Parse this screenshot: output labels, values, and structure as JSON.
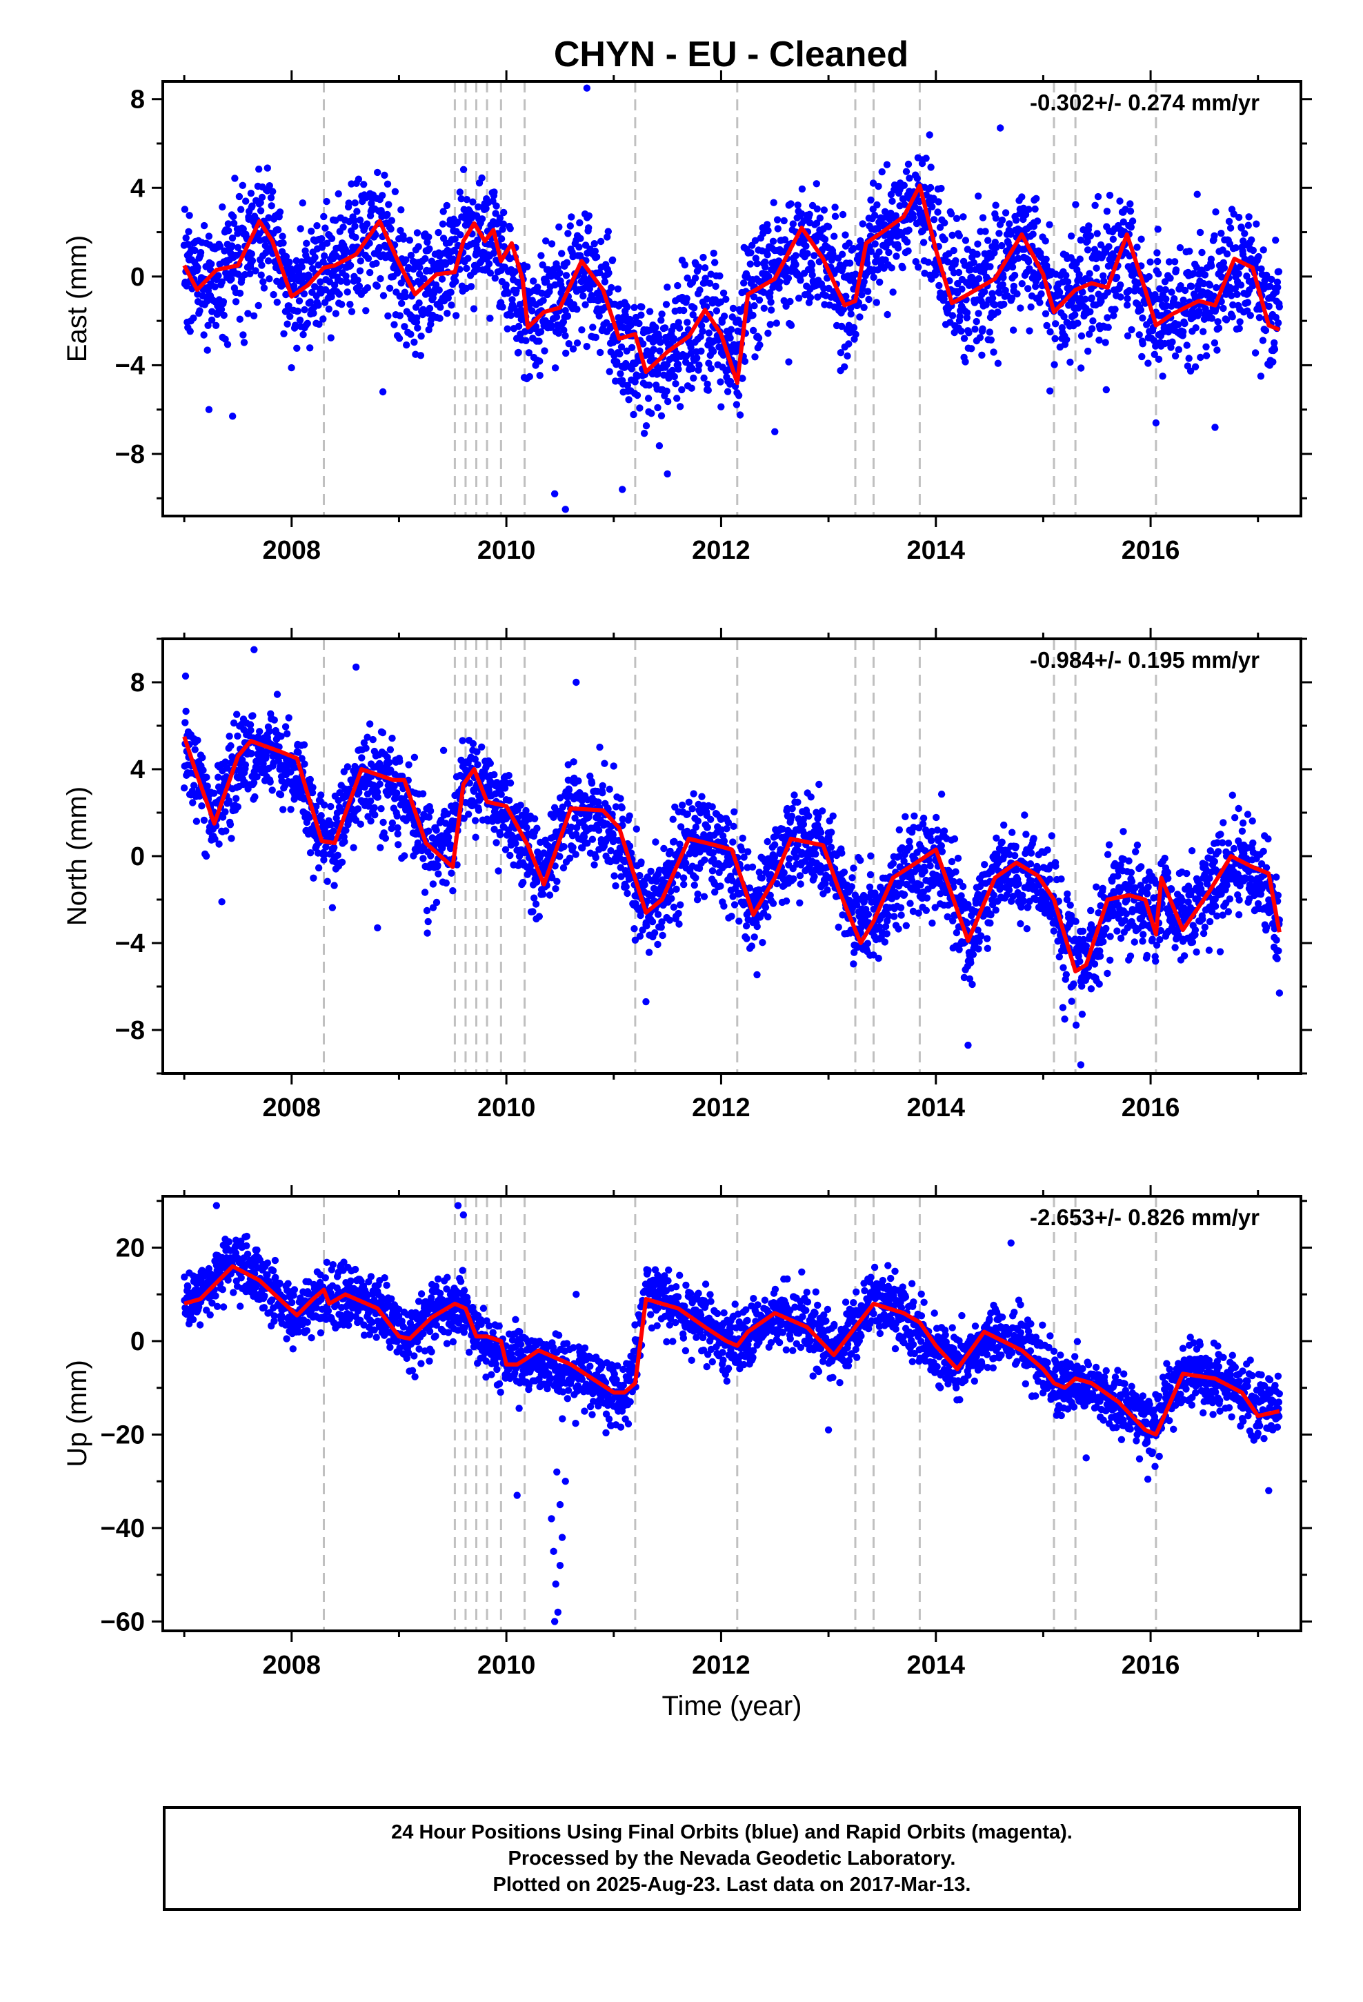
{
  "title": "CHYN  - EU - Cleaned",
  "footer": {
    "line1": "24 Hour Positions Using Final Orbits (blue) and Rapid Orbits (magenta).",
    "line2": "Processed by the Nevada Geodetic Laboratory.",
    "line3": "Plotted on 2025-Aug-23. Last data on 2017-Mar-13."
  },
  "colors": {
    "points": "#0000ff",
    "model": "#ff0000",
    "steps": "#c0c0c0",
    "frame": "#000000"
  },
  "chart_data": [
    {
      "type": "scatter",
      "ylabel": "East (mm)",
      "xlabel": "",
      "annotation": "-0.302+/- 0.274 mm/yr",
      "xlim": [
        2006.8,
        2017.4
      ],
      "ylim": [
        -10.8,
        8.8
      ],
      "x_ticks": [
        2008,
        2010,
        2012,
        2014,
        2016
      ],
      "y_ticks": [
        -8,
        -4,
        0,
        4,
        8
      ],
      "step_lines": [
        2008.3,
        2009.52,
        2009.62,
        2009.72,
        2009.82,
        2009.95,
        2010.17,
        2011.2,
        2012.15,
        2013.25,
        2013.42,
        2013.85,
        2015.1,
        2015.3,
        2016.05
      ],
      "series": [
        {
          "model": {
            "x": [
              2007.0,
              2007.12,
              2007.3,
              2007.5,
              2007.7,
              2007.82,
              2008.0,
              2008.15,
              2008.3,
              2008.4,
              2008.6,
              2008.82,
              2009.0,
              2009.15,
              2009.35,
              2009.52,
              2009.6,
              2009.7,
              2009.8,
              2009.88,
              2009.95,
              2010.05,
              2010.15,
              2010.2,
              2010.35,
              2010.5,
              2010.7,
              2010.9,
              2011.05,
              2011.2,
              2011.3,
              2011.5,
              2011.7,
              2011.85,
              2012.0,
              2012.15,
              2012.25,
              2012.5,
              2012.75,
              2012.95,
              2013.15,
              2013.25,
              2013.35,
              2013.5,
              2013.7,
              2013.85,
              2014.0,
              2014.15,
              2014.3,
              2014.55,
              2014.8,
              2015.0,
              2015.1,
              2015.3,
              2015.45,
              2015.6,
              2015.78,
              2015.95,
              2016.05,
              2016.2,
              2016.45,
              2016.6,
              2016.78,
              2016.95,
              2017.1,
              2017.2
            ],
            "y": [
              0.5,
              -0.6,
              0.3,
              0.5,
              2.5,
              1.6,
              -0.9,
              -0.4,
              0.4,
              0.5,
              1.0,
              2.5,
              0.6,
              -0.8,
              0.1,
              0.2,
              1.6,
              2.4,
              1.6,
              2.1,
              0.7,
              1.5,
              -0.1,
              -2.3,
              -1.6,
              -1.4,
              0.7,
              -0.6,
              -2.8,
              -2.6,
              -4.3,
              -3.4,
              -2.7,
              -1.5,
              -2.6,
              -4.8,
              -0.8,
              -0.1,
              2.2,
              0.8,
              -1.3,
              -1.1,
              1.5,
              2.0,
              2.7,
              4.1,
              1.2,
              -1.2,
              -0.8,
              -0.1,
              1.9,
              0.1,
              -1.6,
              -0.6,
              -0.3,
              -0.5,
              1.9,
              -0.6,
              -2.2,
              -1.7,
              -1.1,
              -1.3,
              0.8,
              0.4,
              -2.2,
              -2.4
            ]
          },
          "points_base": {
            "x": [
              2007.0,
              2007.3,
              2007.5,
              2007.8,
              2008.0,
              2008.3,
              2008.5,
              2008.8,
              2009.0,
              2009.3,
              2009.6,
              2009.9,
              2010.1,
              2010.3,
              2010.6,
              2010.9,
              2011.2,
              2011.4,
              2011.7,
              2011.9,
              2012.1,
              2012.3,
              2012.6,
              2012.9,
              2013.2,
              2013.5,
              2013.8,
              2014.0,
              2014.3,
              2014.6,
              2014.9,
              2015.1,
              2015.4,
              2015.7,
              2015.9,
              2016.1,
              2016.4,
              2016.7,
              2016.9,
              2017.2
            ],
            "y": [
              0.4,
              -0.4,
              0.8,
              2.3,
              -1.0,
              0.1,
              1.1,
              2.2,
              0.0,
              -0.6,
              2.0,
              1.5,
              -1.5,
              -2.0,
              0.3,
              -1.0,
              -4.5,
              -4.0,
              -2.6,
              -2.1,
              -3.8,
              -0.6,
              0.1,
              2.0,
              -1.0,
              2.0,
              3.5,
              1.0,
              -1.0,
              0.0,
              1.5,
              -1.2,
              -0.5,
              1.2,
              -0.5,
              -1.8,
              -1.0,
              0.0,
              0.4,
              -2.0
            ]
          },
          "scatter_sd": 1.4,
          "n_points": 3000,
          "outliers": [
            [
              2010.45,
              -9.8
            ],
            [
              2010.55,
              -10.5
            ],
            [
              2011.08,
              -9.6
            ],
            [
              2010.75,
              8.5
            ],
            [
              2008.85,
              -5.2
            ],
            [
              2014.6,
              6.7
            ],
            [
              2007.45,
              -6.3
            ],
            [
              2007.23,
              -6.0
            ],
            [
              2012.5,
              -7.0
            ],
            [
              2016.6,
              -6.8
            ],
            [
              2016.05,
              -6.6
            ],
            [
              2011.5,
              -8.9
            ]
          ]
        }
      ]
    },
    {
      "type": "scatter",
      "ylabel": "North (mm)",
      "xlabel": "",
      "annotation": "-0.984+/- 0.195 mm/yr",
      "xlim": [
        2006.8,
        2017.4
      ],
      "ylim": [
        -10.0,
        10.0
      ],
      "x_ticks": [
        2008,
        2010,
        2012,
        2014,
        2016
      ],
      "y_ticks": [
        -8,
        -4,
        0,
        4,
        8
      ],
      "step_lines": [
        2008.3,
        2009.52,
        2009.62,
        2009.72,
        2009.82,
        2009.95,
        2010.17,
        2011.2,
        2012.15,
        2013.25,
        2013.42,
        2013.85,
        2015.1,
        2015.3,
        2016.05
      ],
      "series": [
        {
          "model": {
            "x": [
              2007.0,
              2007.1,
              2007.28,
              2007.5,
              2007.62,
              2007.9,
              2008.05,
              2008.28,
              2008.4,
              2008.65,
              2008.95,
              2009.05,
              2009.25,
              2009.5,
              2009.6,
              2009.7,
              2009.82,
              2010.0,
              2010.2,
              2010.35,
              2010.6,
              2010.9,
              2011.05,
              2011.3,
              2011.45,
              2011.7,
              2011.95,
              2012.1,
              2012.3,
              2012.5,
              2012.65,
              2012.95,
              2013.1,
              2013.3,
              2013.42,
              2013.6,
              2013.85,
              2014.0,
              2014.3,
              2014.55,
              2014.75,
              2014.95,
              2015.1,
              2015.3,
              2015.4,
              2015.6,
              2015.8,
              2015.95,
              2016.05,
              2016.1,
              2016.3,
              2016.55,
              2016.75,
              2016.95,
              2017.1,
              2017.2
            ],
            "y": [
              5.5,
              4.0,
              1.5,
              4.6,
              5.3,
              4.8,
              4.5,
              0.7,
              0.6,
              4.0,
              3.5,
              3.5,
              0.6,
              -0.5,
              3.3,
              4.0,
              2.5,
              2.3,
              0.5,
              -1.3,
              2.2,
              2.1,
              1.3,
              -2.6,
              -2.0,
              0.8,
              0.5,
              0.3,
              -2.7,
              -1.0,
              0.8,
              0.5,
              -1.6,
              -4.0,
              -3.0,
              -1.0,
              -0.2,
              0.3,
              -3.9,
              -1.0,
              -0.3,
              -0.9,
              -2.0,
              -5.3,
              -5.0,
              -2.0,
              -1.8,
              -2.0,
              -3.6,
              -1.0,
              -3.4,
              -1.6,
              0.0,
              -0.5,
              -0.8,
              -3.5
            ]
          },
          "points_base": {
            "x": [
              2007.0,
              2007.3,
              2007.6,
              2007.9,
              2008.2,
              2008.4,
              2008.7,
              2009.0,
              2009.3,
              2009.6,
              2009.9,
              2010.1,
              2010.3,
              2010.6,
              2010.9,
              2011.2,
              2011.4,
              2011.7,
              2012.0,
              2012.3,
              2012.6,
              2012.9,
              2013.2,
              2013.5,
              2013.8,
              2014.1,
              2014.3,
              2014.6,
              2014.9,
              2015.2,
              2015.4,
              2015.7,
              2016.0,
              2016.3,
              2016.6,
              2016.9,
              2017.2
            ],
            "y": [
              5.2,
              1.8,
              5.0,
              4.5,
              1.5,
              1.0,
              3.5,
              3.0,
              -0.5,
              3.5,
              2.5,
              1.0,
              -0.8,
              2.0,
              2.0,
              -1.8,
              -2.0,
              0.6,
              0.4,
              -2.2,
              0.5,
              0.3,
              -2.0,
              -2.8,
              -0.6,
              -0.5,
              -3.5,
              -0.6,
              -0.8,
              -3.8,
              -4.2,
              -2.0,
              -2.5,
              -3.0,
              -0.7,
              -0.6,
              -3.0
            ]
          },
          "scatter_sd": 1.1,
          "n_points": 3000,
          "outliers": [
            [
              2007.65,
              9.5
            ],
            [
              2008.6,
              8.7
            ],
            [
              2010.65,
              8.0
            ],
            [
              2014.3,
              -8.7
            ],
            [
              2015.35,
              -9.6
            ],
            [
              2011.3,
              -6.7
            ],
            [
              2008.8,
              -3.3
            ],
            [
              2007.35,
              -2.1
            ],
            [
              2017.2,
              -6.3
            ],
            [
              2015.2,
              -7.5
            ]
          ]
        }
      ]
    },
    {
      "type": "scatter",
      "ylabel": "Up (mm)",
      "xlabel": "Time (year)",
      "annotation": "-2.653+/- 0.826 mm/yr",
      "xlim": [
        2006.8,
        2017.4
      ],
      "ylim": [
        -62,
        31
      ],
      "x_ticks": [
        2008,
        2010,
        2012,
        2014,
        2016
      ],
      "y_ticks": [
        -60,
        -40,
        -20,
        0,
        20
      ],
      "step_lines": [
        2008.3,
        2009.52,
        2009.62,
        2009.72,
        2009.82,
        2009.95,
        2010.17,
        2011.2,
        2012.15,
        2013.25,
        2013.42,
        2013.85,
        2015.1,
        2015.3,
        2016.05
      ],
      "series": [
        {
          "model": {
            "x": [
              2007.0,
              2007.15,
              2007.45,
              2007.7,
              2008.05,
              2008.2,
              2008.3,
              2008.35,
              2008.5,
              2008.8,
              2009.0,
              2009.1,
              2009.3,
              2009.52,
              2009.62,
              2009.72,
              2009.82,
              2009.95,
              2010.0,
              2010.1,
              2010.17,
              2010.3,
              2010.6,
              2010.8,
              2011.0,
              2011.1,
              2011.2,
              2011.3,
              2011.6,
              2011.85,
              2012.05,
              2012.15,
              2012.25,
              2012.5,
              2012.8,
              2013.05,
              2013.25,
              2013.42,
              2013.7,
              2013.85,
              2014.0,
              2014.2,
              2014.45,
              2014.8,
              2015.0,
              2015.1,
              2015.2,
              2015.3,
              2015.45,
              2015.7,
              2015.95,
              2016.05,
              2016.3,
              2016.6,
              2016.85,
              2017.0,
              2017.2
            ],
            "y": [
              8,
              9,
              16,
              13,
              5.5,
              9,
              11,
              8,
              10,
              7,
              1,
              0.5,
              5,
              8,
              7,
              1,
              1,
              0,
              -5,
              -5,
              -4,
              -2,
              -5,
              -8,
              -11,
              -11,
              -9,
              9,
              7,
              3,
              0,
              -1,
              2,
              6,
              3,
              -3,
              3,
              8,
              6,
              4,
              -1,
              -6,
              2,
              -2,
              -6,
              -9,
              -10,
              -8,
              -9,
              -13,
              -19,
              -20,
              -7,
              -8,
              -11,
              -16,
              -15
            ]
          },
          "points_base": {
            "x": [
              2007.0,
              2007.2,
              2007.4,
              2007.7,
              2008.0,
              2008.3,
              2008.6,
              2008.9,
              2009.1,
              2009.4,
              2009.7,
              2009.9,
              2010.2,
              2010.5,
              2010.8,
              2011.1,
              2011.3,
              2011.6,
              2011.9,
              2012.2,
              2012.5,
              2012.8,
              2013.1,
              2013.4,
              2013.7,
              2014.0,
              2014.3,
              2014.6,
              2014.9,
              2015.2,
              2015.5,
              2015.8,
              2016.0,
              2016.3,
              2016.6,
              2016.9,
              2017.2
            ],
            "y": [
              6,
              12,
              17,
              13,
              5,
              9,
              9,
              7,
              1,
              8,
              3,
              -2,
              -5,
              -8,
              -9,
              -12,
              13,
              8,
              4,
              -2,
              6,
              4,
              -3,
              10,
              6,
              -3,
              -4,
              3,
              -2,
              -9,
              -12,
              -14,
              -18,
              -6,
              -8,
              -11,
              -14
            ]
          },
          "scatter_sd": 3.4,
          "n_points": 3000,
          "outliers": [
            [
              2010.45,
              -60
            ],
            [
              2010.48,
              -58
            ],
            [
              2010.46,
              -52
            ],
            [
              2010.5,
              -48
            ],
            [
              2010.44,
              -45
            ],
            [
              2010.52,
              -42
            ],
            [
              2010.42,
              -38
            ],
            [
              2010.5,
              -35
            ],
            [
              2010.1,
              -33
            ],
            [
              2010.55,
              -30
            ],
            [
              2010.47,
              -28
            ],
            [
              2009.55,
              29
            ],
            [
              2009.6,
              27
            ],
            [
              2007.3,
              29
            ],
            [
              2014.7,
              21
            ],
            [
              2017.1,
              -32
            ],
            [
              2010.65,
              10
            ],
            [
              2013.0,
              -19
            ],
            [
              2015.4,
              -25
            ]
          ]
        }
      ]
    }
  ]
}
